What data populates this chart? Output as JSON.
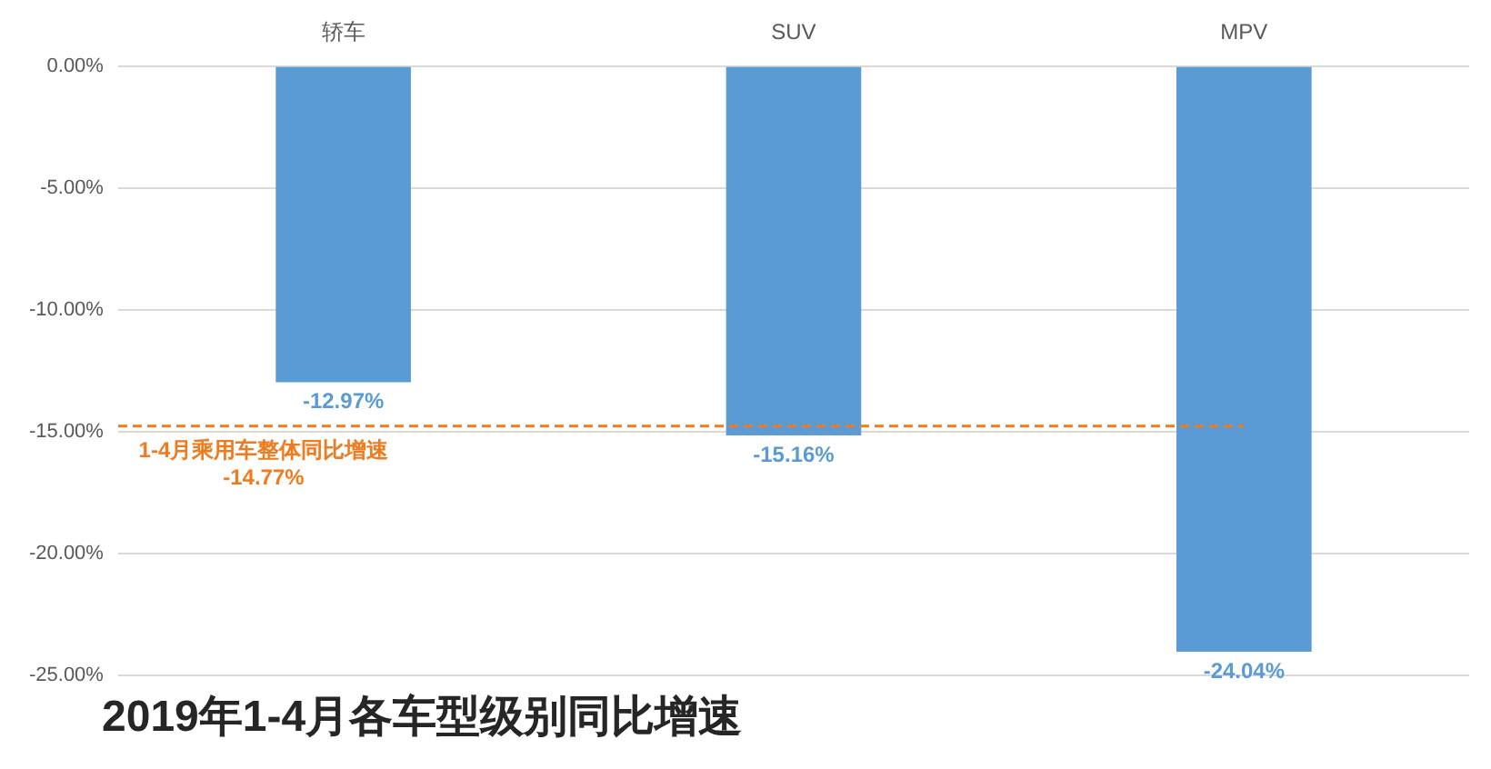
{
  "chart_data": {
    "type": "bar",
    "title": "2019年1-4月各车型级别同比增速",
    "categories": [
      "轿车",
      "SUV",
      "MPV"
    ],
    "values": [
      -12.97,
      -15.16,
      -24.04
    ],
    "color": "#5b9bd5",
    "value_labels": [
      "-12.97%",
      "-15.16%",
      "-24.04%"
    ],
    "ylim": [
      -25,
      0
    ],
    "yticks": [
      {
        "value": 0,
        "label": "0.00%"
      },
      {
        "value": -5,
        "label": "-5.00%"
      },
      {
        "value": -10,
        "label": "-10.00%"
      },
      {
        "value": -15,
        "label": "-15.00%"
      },
      {
        "value": -20,
        "label": "-20.00%"
      },
      {
        "value": -25,
        "label": "-25.00%"
      }
    ],
    "grid": "y",
    "legend": false,
    "ref_lines": [
      {
        "axis": "y",
        "value": -14.77,
        "label": "1-4月乘用车整体同比增速\n-14.77%",
        "color": "#f07b1f",
        "line_style": "dashed"
      }
    ]
  }
}
